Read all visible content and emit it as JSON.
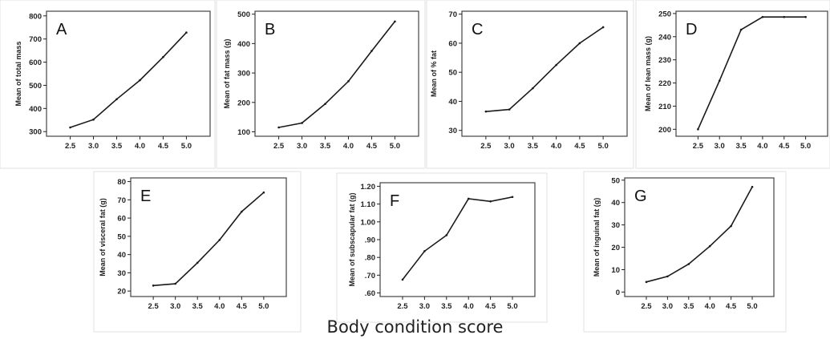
{
  "figure": {
    "xlabel": "Body condition score"
  },
  "chart_data": [
    {
      "panel": "A",
      "type": "line",
      "x": [
        "2.5",
        "3.0",
        "3.5",
        "4.0",
        "4.5",
        "5.0"
      ],
      "values": [
        318,
        352,
        440,
        522,
        622,
        728
      ],
      "ylabel": "Mean of total mass",
      "ylim": [
        280,
        820
      ],
      "yticks": [
        300,
        400,
        500,
        600,
        700,
        800
      ],
      "ytick_labels": [
        "300",
        "400",
        "500",
        "600",
        "700",
        "800"
      ]
    },
    {
      "panel": "B",
      "type": "line",
      "x": [
        "2.5",
        "3.0",
        "3.5",
        "4.0",
        "4.5",
        "5.0"
      ],
      "values": [
        115,
        130,
        195,
        272,
        375,
        475
      ],
      "ylabel": "Mean of fat mass (g)",
      "ylim": [
        85,
        510
      ],
      "yticks": [
        100,
        200,
        300,
        400,
        500
      ],
      "ytick_labels": [
        "100",
        "200",
        "300",
        "400",
        "500"
      ]
    },
    {
      "panel": "C",
      "type": "line",
      "x": [
        "2.5",
        "3.0",
        "3.5",
        "4.0",
        "4.5",
        "5.0"
      ],
      "values": [
        36.5,
        37.2,
        44.5,
        52.5,
        60,
        65.5
      ],
      "ylabel": "Mean of % fat",
      "ylim": [
        28,
        71
      ],
      "yticks": [
        30,
        40,
        50,
        60,
        70
      ],
      "ytick_labels": [
        "30",
        "40",
        "50",
        "60",
        "70"
      ]
    },
    {
      "panel": "D",
      "type": "line",
      "x": [
        "2.5",
        "3.0",
        "3.5",
        "4.0",
        "4.5",
        "5.0"
      ],
      "values": [
        200,
        221,
        243,
        248.5,
        248.5,
        248.5
      ],
      "ylabel": "Mean of lean mass (g)",
      "ylim": [
        197,
        251
      ],
      "yticks": [
        200,
        210,
        220,
        230,
        240,
        250
      ],
      "ytick_labels": [
        "200",
        "210",
        "220",
        "230",
        "240",
        "250"
      ]
    },
    {
      "panel": "E",
      "type": "line",
      "x": [
        "2.5",
        "3.0",
        "3.5",
        "4.0",
        "4.5",
        "5.0"
      ],
      "values": [
        23,
        24,
        35.5,
        48,
        63.5,
        74
      ],
      "ylabel": "Mean of visceral fat (g)",
      "ylim": [
        17,
        82
      ],
      "yticks": [
        20,
        30,
        40,
        50,
        60,
        70,
        80
      ],
      "ytick_labels": [
        "20",
        "30",
        "40",
        "50",
        "60",
        "70",
        "80"
      ]
    },
    {
      "panel": "F",
      "type": "line",
      "x": [
        "2.5",
        "3.0",
        "3.5",
        "4.0",
        "4.5",
        "5.0"
      ],
      "values": [
        0.675,
        0.835,
        0.925,
        1.13,
        1.115,
        1.14
      ],
      "ylabel": "Mean of subscapular fat (g)",
      "ylim": [
        0.58,
        1.22
      ],
      "yticks": [
        0.6,
        0.7,
        0.8,
        0.9,
        1.0,
        1.1,
        1.2
      ],
      "ytick_labels": [
        ".60",
        ".70",
        ".80",
        ".90",
        "1.00",
        "1.10",
        "1.20"
      ]
    },
    {
      "panel": "G",
      "type": "line",
      "x": [
        "2.5",
        "3.0",
        "3.5",
        "4.0",
        "4.5",
        "5.0"
      ],
      "values": [
        4.5,
        7,
        12.5,
        20.5,
        29.5,
        47
      ],
      "ylabel": "Mean of inguinal fat (g)",
      "ylim": [
        -2,
        51
      ],
      "yticks": [
        0,
        10,
        20,
        30,
        40,
        50
      ],
      "ytick_labels": [
        "0",
        "10",
        "20",
        "30",
        "40",
        "50"
      ]
    }
  ]
}
